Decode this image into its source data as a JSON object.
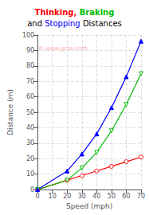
{
  "chart_data": {
    "type": "line",
    "title": [
      [
        {
          "text": "Thinking, ",
          "color": "#ff0000"
        },
        {
          "text": "Braking",
          "color": "#00bb00"
        }
      ],
      [
        {
          "text": "and ",
          "color": "#000000"
        },
        {
          "text": "Stopping",
          "color": "#0000ff"
        },
        {
          "text": " Distances",
          "color": "#000000"
        }
      ]
    ],
    "x_label": "Speed (mph)",
    "y_label": "Distance (m)",
    "x": [
      0,
      20,
      30,
      40,
      50,
      60,
      70
    ],
    "series": [
      {
        "color": "#ff0000",
        "marker": "hollow circle",
        "values": [
          0,
          6,
          9,
          12,
          15,
          18,
          21
        ]
      },
      {
        "color": "#00bb00",
        "marker": "hollow triangle-down",
        "values": [
          0,
          6,
          14,
          24,
          38,
          55,
          75
        ]
      },
      {
        "color": "#0000ff",
        "marker": "triangle",
        "values": [
          0,
          12,
          23,
          36,
          53,
          73,
          96
        ]
      }
    ],
    "xlim": [
      0,
      70
    ],
    "ylim": [
      0,
      100
    ],
    "xticks": [
      0,
      10,
      20,
      30,
      40,
      50,
      60,
      70
    ],
    "yticks": [
      0,
      10,
      20,
      30,
      40,
      50,
      60,
      70,
      80,
      90,
      100
    ],
    "grid": true,
    "annotations": [
      {
        "text": "© www.gcse.com",
        "color": "#ffaaaa"
      }
    ]
  }
}
